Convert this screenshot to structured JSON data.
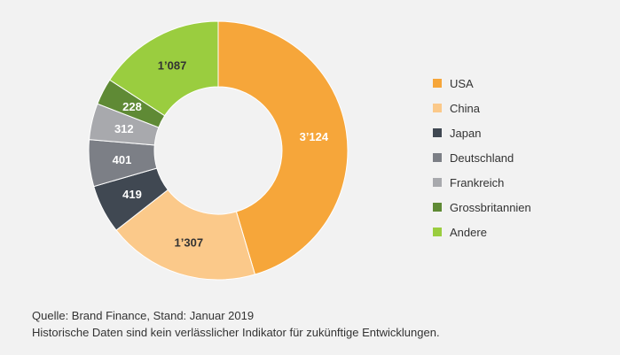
{
  "chart_data": {
    "type": "donut",
    "categories": [
      "USA",
      "China",
      "Japan",
      "Deutschland",
      "Frankreich",
      "Grossbritannien",
      "Andere"
    ],
    "values": [
      3124,
      1307,
      419,
      401,
      312,
      228,
      1087
    ],
    "value_labels": [
      "3’124",
      "1’307",
      "419",
      "401",
      "312",
      "228",
      "1’087"
    ],
    "colors": [
      "#f6a63a",
      "#fbc98a",
      "#404852",
      "#7c7f86",
      "#a8a9ad",
      "#5f8a35",
      "#9acd3f"
    ],
    "label_colors": [
      "#ffffff",
      "#333333",
      "#ffffff",
      "#ffffff",
      "#ffffff",
      "#ffffff",
      "#333333"
    ],
    "legend_position": "right"
  },
  "footer": {
    "source": "Quelle: Brand Finance, Stand: Januar 2019",
    "disclaimer": "Historische Daten sind kein verlässlicher Indikator für zukünftige Entwicklungen."
  }
}
